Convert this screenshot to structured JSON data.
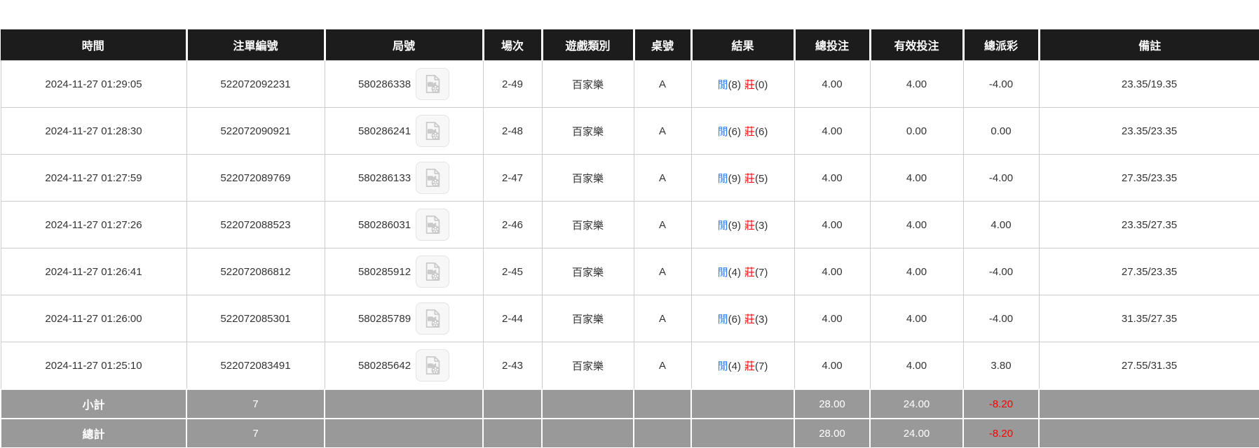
{
  "palette": {
    "header_bg": "#1c1c1c",
    "body_text": "#333333",
    "blue": "#2b7cf7",
    "red": "#ff0000",
    "summary_bg": "#999999",
    "border": "#cccccc"
  },
  "table": {
    "columns": [
      "時間",
      "注單編號",
      "局號",
      "場次",
      "遊戲類別",
      "桌號",
      "結果",
      "總投注",
      "有效投注",
      "總派彩",
      "備註"
    ],
    "result_labels": {
      "player": "閒",
      "banker": "莊"
    },
    "icons": {
      "replay": "video-replay-icon"
    },
    "rows": [
      {
        "time": "2024-11-27 01:29:05",
        "bet_no": "522072092231",
        "round_no": "580286338",
        "session": "2-49",
        "game": "百家樂",
        "table_no": "A",
        "player": "8",
        "banker": "0",
        "total_bet": "4.00",
        "valid_bet": "4.00",
        "payout": "-4.00",
        "remark": "23.35/19.35"
      },
      {
        "time": "2024-11-27 01:28:30",
        "bet_no": "522072090921",
        "round_no": "580286241",
        "session": "2-48",
        "game": "百家樂",
        "table_no": "A",
        "player": "6",
        "banker": "6",
        "total_bet": "4.00",
        "valid_bet": "0.00",
        "payout": "0.00",
        "remark": "23.35/23.35"
      },
      {
        "time": "2024-11-27 01:27:59",
        "bet_no": "522072089769",
        "round_no": "580286133",
        "session": "2-47",
        "game": "百家樂",
        "table_no": "A",
        "player": "9",
        "banker": "5",
        "total_bet": "4.00",
        "valid_bet": "4.00",
        "payout": "-4.00",
        "remark": "27.35/23.35"
      },
      {
        "time": "2024-11-27 01:27:26",
        "bet_no": "522072088523",
        "round_no": "580286031",
        "session": "2-46",
        "game": "百家樂",
        "table_no": "A",
        "player": "9",
        "banker": "3",
        "total_bet": "4.00",
        "valid_bet": "4.00",
        "payout": "4.00",
        "remark": "23.35/27.35"
      },
      {
        "time": "2024-11-27 01:26:41",
        "bet_no": "522072086812",
        "round_no": "580285912",
        "session": "2-45",
        "game": "百家樂",
        "table_no": "A",
        "player": "4",
        "banker": "7",
        "total_bet": "4.00",
        "valid_bet": "4.00",
        "payout": "-4.00",
        "remark": "27.35/23.35"
      },
      {
        "time": "2024-11-27 01:26:00",
        "bet_no": "522072085301",
        "round_no": "580285789",
        "session": "2-44",
        "game": "百家樂",
        "table_no": "A",
        "player": "6",
        "banker": "3",
        "total_bet": "4.00",
        "valid_bet": "4.00",
        "payout": "-4.00",
        "remark": "31.35/27.35"
      },
      {
        "time": "2024-11-27 01:25:10",
        "bet_no": "522072083491",
        "round_no": "580285642",
        "session": "2-43",
        "game": "百家樂",
        "table_no": "A",
        "player": "4",
        "banker": "7",
        "total_bet": "4.00",
        "valid_bet": "4.00",
        "payout": "3.80",
        "remark": "27.55/31.35"
      }
    ],
    "summary_rows": [
      {
        "label": "小計",
        "count": "7",
        "total_bet": "28.00",
        "valid_bet": "24.00",
        "payout": "-8.20"
      },
      {
        "label": "總計",
        "count": "7",
        "total_bet": "28.00",
        "valid_bet": "24.00",
        "payout": "-8.20"
      }
    ]
  }
}
